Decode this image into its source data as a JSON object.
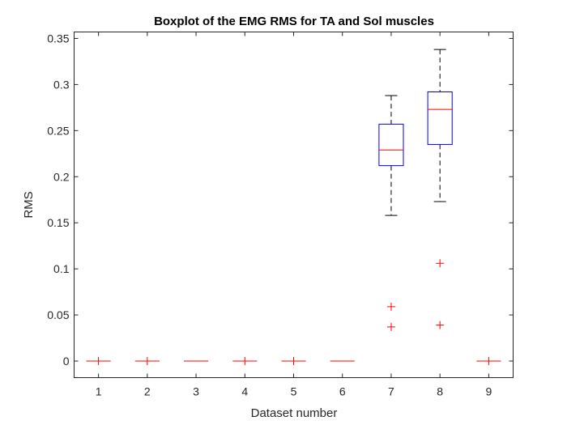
{
  "chart_data": {
    "type": "boxplot",
    "title": "Boxplot of the EMG RMS for TA and Sol muscles",
    "xlabel": "Dataset number",
    "ylabel": "RMS",
    "categories": [
      "1",
      "2",
      "3",
      "4",
      "5",
      "6",
      "7",
      "8",
      "9"
    ],
    "ylim": [
      -0.018,
      0.357
    ],
    "yticks": [
      0,
      0.05,
      0.1,
      0.15,
      0.2,
      0.25,
      0.3,
      0.35
    ],
    "ytick_labels": [
      "0",
      "0.05",
      "0.1",
      "0.15",
      "0.2",
      "0.25",
      "0.3",
      "0.35"
    ],
    "grid": false,
    "colors": {
      "box": "#0000ff",
      "median": "#ff0000",
      "whisker": "#000000",
      "outlier": "#ff0000"
    },
    "boxes": [
      {
        "category": "1",
        "whisker_low": 0,
        "q1": 0,
        "median": 0,
        "q3": 0,
        "whisker_high": 0,
        "outliers": [
          0
        ]
      },
      {
        "category": "2",
        "whisker_low": 0,
        "q1": 0,
        "median": 0,
        "q3": 0,
        "whisker_high": 0,
        "outliers": [
          0
        ]
      },
      {
        "category": "3",
        "whisker_low": 0,
        "q1": 0,
        "median": 0,
        "q3": 0,
        "whisker_high": 0,
        "outliers": []
      },
      {
        "category": "4",
        "whisker_low": 0,
        "q1": 0,
        "median": 0,
        "q3": 0,
        "whisker_high": 0,
        "outliers": [
          0
        ]
      },
      {
        "category": "5",
        "whisker_low": 0,
        "q1": 0,
        "median": 0,
        "q3": 0,
        "whisker_high": 0,
        "outliers": [
          0
        ]
      },
      {
        "category": "6",
        "whisker_low": 0,
        "q1": 0,
        "median": 0,
        "q3": 0,
        "whisker_high": 0,
        "outliers": []
      },
      {
        "category": "7",
        "whisker_low": 0.158,
        "q1": 0.212,
        "median": 0.229,
        "q3": 0.257,
        "whisker_high": 0.288,
        "outliers": [
          0.059,
          0.037
        ]
      },
      {
        "category": "8",
        "whisker_low": 0.173,
        "q1": 0.235,
        "median": 0.273,
        "q3": 0.292,
        "whisker_high": 0.338,
        "outliers": [
          0.106,
          0.039
        ]
      },
      {
        "category": "9",
        "whisker_low": 0,
        "q1": 0,
        "median": 0,
        "q3": 0,
        "whisker_high": 0,
        "outliers": [
          0
        ]
      }
    ]
  }
}
